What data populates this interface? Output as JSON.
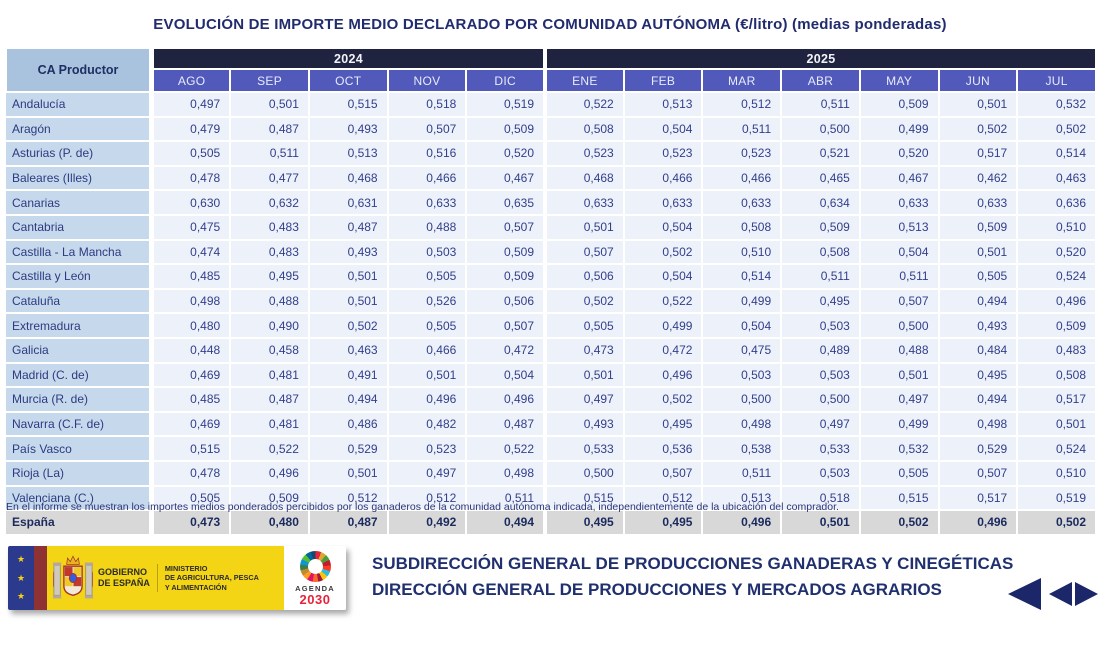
{
  "title": "EVOLUCIÓN DE IMPORTE MEDIO DECLARADO POR COMUNIDAD AUTÓNOMA (€/litro) (medias ponderadas)",
  "table": {
    "corner_header": "CA Productor",
    "year_groups": [
      {
        "label": "2024",
        "months": [
          "AGO",
          "SEP",
          "OCT",
          "NOV",
          "DIC"
        ]
      },
      {
        "label": "2025",
        "months": [
          "ENE",
          "FEB",
          "MAR",
          "ABR",
          "MAY",
          "JUN",
          "JUL"
        ]
      }
    ],
    "rows": [
      {
        "label": "Andalucía",
        "values": [
          "0,497",
          "0,501",
          "0,515",
          "0,518",
          "0,519",
          "0,522",
          "0,513",
          "0,512",
          "0,511",
          "0,509",
          "0,501",
          "0,532"
        ]
      },
      {
        "label": "Aragón",
        "values": [
          "0,479",
          "0,487",
          "0,493",
          "0,507",
          "0,509",
          "0,508",
          "0,504",
          "0,511",
          "0,500",
          "0,499",
          "0,502",
          "0,502"
        ]
      },
      {
        "label": "Asturias (P. de)",
        "values": [
          "0,505",
          "0,511",
          "0,513",
          "0,516",
          "0,520",
          "0,523",
          "0,523",
          "0,523",
          "0,521",
          "0,520",
          "0,517",
          "0,514"
        ]
      },
      {
        "label": "Baleares (Illes)",
        "values": [
          "0,478",
          "0,477",
          "0,468",
          "0,466",
          "0,467",
          "0,468",
          "0,466",
          "0,466",
          "0,465",
          "0,467",
          "0,462",
          "0,463"
        ]
      },
      {
        "label": "Canarias",
        "values": [
          "0,630",
          "0,632",
          "0,631",
          "0,633",
          "0,635",
          "0,633",
          "0,633",
          "0,633",
          "0,634",
          "0,633",
          "0,633",
          "0,636"
        ]
      },
      {
        "label": "Cantabria",
        "values": [
          "0,475",
          "0,483",
          "0,487",
          "0,488",
          "0,507",
          "0,501",
          "0,504",
          "0,508",
          "0,509",
          "0,513",
          "0,509",
          "0,510"
        ]
      },
      {
        "label": "Castilla - La Mancha",
        "values": [
          "0,474",
          "0,483",
          "0,493",
          "0,503",
          "0,509",
          "0,507",
          "0,502",
          "0,510",
          "0,508",
          "0,504",
          "0,501",
          "0,520"
        ]
      },
      {
        "label": "Castilla y León",
        "values": [
          "0,485",
          "0,495",
          "0,501",
          "0,505",
          "0,509",
          "0,506",
          "0,504",
          "0,514",
          "0,511",
          "0,511",
          "0,505",
          "0,524"
        ]
      },
      {
        "label": "Cataluña",
        "values": [
          "0,498",
          "0,488",
          "0,501",
          "0,526",
          "0,506",
          "0,502",
          "0,522",
          "0,499",
          "0,495",
          "0,507",
          "0,494",
          "0,496"
        ]
      },
      {
        "label": "Extremadura",
        "values": [
          "0,480",
          "0,490",
          "0,502",
          "0,505",
          "0,507",
          "0,505",
          "0,499",
          "0,504",
          "0,503",
          "0,500",
          "0,493",
          "0,509"
        ]
      },
      {
        "label": "Galicia",
        "values": [
          "0,448",
          "0,458",
          "0,463",
          "0,466",
          "0,472",
          "0,473",
          "0,472",
          "0,475",
          "0,489",
          "0,488",
          "0,484",
          "0,483"
        ]
      },
      {
        "label": "Madrid (C. de)",
        "values": [
          "0,469",
          "0,481",
          "0,491",
          "0,501",
          "0,504",
          "0,501",
          "0,496",
          "0,503",
          "0,503",
          "0,501",
          "0,495",
          "0,508"
        ]
      },
      {
        "label": "Murcia (R. de)",
        "values": [
          "0,485",
          "0,487",
          "0,494",
          "0,496",
          "0,496",
          "0,497",
          "0,502",
          "0,500",
          "0,500",
          "0,497",
          "0,494",
          "0,517"
        ]
      },
      {
        "label": "Navarra (C.F. de)",
        "values": [
          "0,469",
          "0,481",
          "0,486",
          "0,482",
          "0,487",
          "0,493",
          "0,495",
          "0,498",
          "0,497",
          "0,499",
          "0,498",
          "0,501"
        ]
      },
      {
        "label": "País Vasco",
        "values": [
          "0,515",
          "0,522",
          "0,529",
          "0,523",
          "0,522",
          "0,533",
          "0,536",
          "0,538",
          "0,533",
          "0,532",
          "0,529",
          "0,524"
        ]
      },
      {
        "label": "Rioja (La)",
        "values": [
          "0,478",
          "0,496",
          "0,501",
          "0,497",
          "0,498",
          "0,500",
          "0,507",
          "0,511",
          "0,503",
          "0,505",
          "0,507",
          "0,510"
        ]
      },
      {
        "label": "Valenciana (C.)",
        "values": [
          "0,505",
          "0,509",
          "0,512",
          "0,512",
          "0,511",
          "0,515",
          "0,512",
          "0,513",
          "0,518",
          "0,515",
          "0,517",
          "0,519"
        ]
      }
    ],
    "total_row": {
      "label": "España",
      "values": [
        "0,473",
        "0,480",
        "0,487",
        "0,492",
        "0,494",
        "0,495",
        "0,495",
        "0,496",
        "0,501",
        "0,502",
        "0,496",
        "0,502"
      ]
    }
  },
  "footnote": "En el informe se muestran los importes medios ponderados percibidos por los ganaderos de la comunidad autónoma indicada, independientemente de la ubicación del comprador.",
  "footer": {
    "government_line1": "GOBIERNO",
    "government_line2": "DE ESPAÑA",
    "ministry_line1": "MINISTERIO",
    "ministry_line2": "DE AGRICULTURA, PESCA",
    "ministry_line3": "Y ALIMENTACIÓN",
    "agenda_label": "AGENDA",
    "agenda_year": "2030",
    "department_line1": "SUBDIRECCIÓN GENERAL DE PRODUCCIONES GANADERAS Y CINEGÉTICAS",
    "department_line2": "DIRECCIÓN GENERAL DE PRODUCCIONES Y MERCADOS AGRARIOS"
  },
  "colors": {
    "year_band": "#20233f",
    "month_band": "#5159ba",
    "corner_cell": "#a9c3de",
    "label_cell": "#c6d9ec",
    "data_cell": "#edf1f9",
    "total_row_bg": "#d8d8d8",
    "navy_text": "#212c6e",
    "agenda_red": "#e5243b"
  }
}
